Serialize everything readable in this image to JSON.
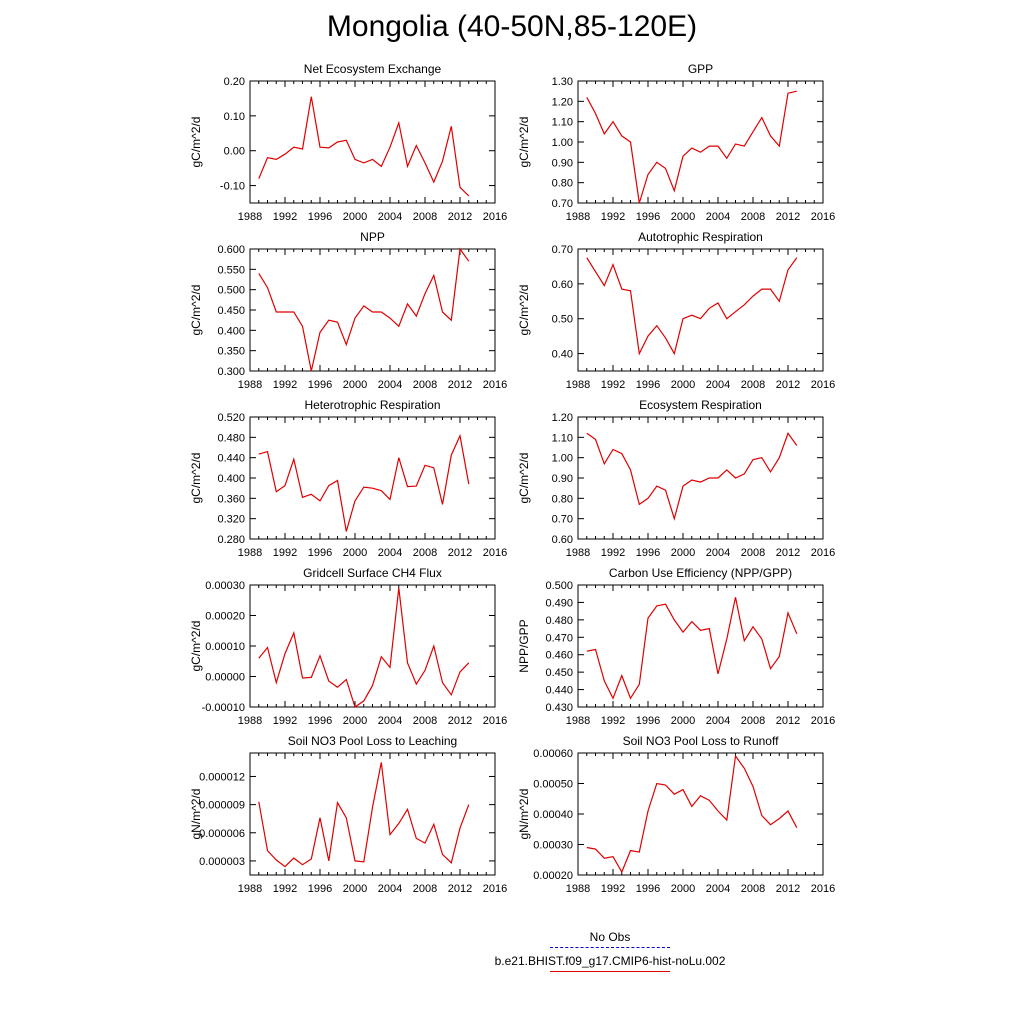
{
  "title": "Mongolia (40-50N,85-120E)",
  "legend": [
    {
      "label": "No Obs",
      "style": "dashed",
      "color": "#0000cc"
    },
    {
      "label": "b.e21.BHIST.f09_g17.CMIP6-hist-noLu.002",
      "style": "solid",
      "color": "#e00000"
    }
  ],
  "chart_data": [
    {
      "type": "line",
      "title": "Net Ecosystem Exchange",
      "ylabel": "gC/m^2/d",
      "xlabel": "",
      "xlim": [
        1988,
        2016
      ],
      "ylim": [
        -0.15,
        0.2
      ],
      "xticks": [
        "1988",
        "1992",
        "1996",
        "2000",
        "2004",
        "2008",
        "2012",
        "2016"
      ],
      "yticks": [
        "-0.10",
        "0.00",
        "0.10",
        "0.20"
      ],
      "series": [
        {
          "color": "#e00000",
          "x": [
            1989,
            1990,
            1991,
            1992,
            1993,
            1994,
            1995,
            1996,
            1997,
            1998,
            1999,
            2000,
            2001,
            2002,
            2003,
            2004,
            2005,
            2006,
            2007,
            2008,
            2009,
            2010,
            2011,
            2012,
            2013
          ],
          "values": [
            -0.08,
            -0.02,
            -0.025,
            -0.01,
            0.01,
            0.005,
            0.155,
            0.01,
            0.008,
            0.025,
            0.03,
            -0.025,
            -0.035,
            -0.025,
            -0.045,
            0.01,
            0.08,
            -0.045,
            0.015,
            -0.035,
            -0.09,
            -0.03,
            0.07,
            -0.105,
            -0.13
          ]
        }
      ]
    },
    {
      "type": "line",
      "title": "GPP",
      "ylabel": "gC/m^2/d",
      "xlabel": "",
      "xlim": [
        1988,
        2016
      ],
      "ylim": [
        0.7,
        1.3
      ],
      "xticks": [
        "1988",
        "1992",
        "1996",
        "2000",
        "2004",
        "2008",
        "2012",
        "2016"
      ],
      "yticks": [
        "0.70",
        "0.80",
        "0.90",
        "1.00",
        "1.10",
        "1.20",
        "1.30"
      ],
      "series": [
        {
          "color": "#e00000",
          "x": [
            1989,
            1990,
            1991,
            1992,
            1993,
            1994,
            1995,
            1996,
            1997,
            1998,
            1999,
            2000,
            2001,
            2002,
            2003,
            2004,
            2005,
            2006,
            2007,
            2008,
            2009,
            2010,
            2011,
            2012,
            2013
          ],
          "values": [
            1.22,
            1.14,
            1.04,
            1.1,
            1.03,
            1.0,
            0.7,
            0.84,
            0.9,
            0.87,
            0.76,
            0.93,
            0.97,
            0.95,
            0.98,
            0.98,
            0.92,
            0.99,
            0.98,
            1.05,
            1.12,
            1.03,
            0.98,
            1.24,
            1.25
          ]
        }
      ]
    },
    {
      "type": "line",
      "title": "NPP",
      "ylabel": "gC/m^2/d",
      "xlabel": "",
      "xlim": [
        1988,
        2016
      ],
      "ylim": [
        0.3,
        0.6
      ],
      "xticks": [
        "1988",
        "1992",
        "1996",
        "2000",
        "2004",
        "2008",
        "2012",
        "2016"
      ],
      "yticks": [
        "0.300",
        "0.350",
        "0.400",
        "0.450",
        "0.500",
        "0.550",
        "0.600"
      ],
      "series": [
        {
          "color": "#e00000",
          "x": [
            1989,
            1990,
            1991,
            1992,
            1993,
            1994,
            1995,
            1996,
            1997,
            1998,
            1999,
            2000,
            2001,
            2002,
            2003,
            2004,
            2005,
            2006,
            2007,
            2008,
            2009,
            2010,
            2011,
            2012,
            2013
          ],
          "values": [
            0.54,
            0.505,
            0.445,
            0.445,
            0.445,
            0.41,
            0.3,
            0.395,
            0.425,
            0.42,
            0.365,
            0.43,
            0.46,
            0.445,
            0.445,
            0.43,
            0.41,
            0.465,
            0.435,
            0.49,
            0.535,
            0.445,
            0.425,
            0.6,
            0.57
          ]
        }
      ]
    },
    {
      "type": "line",
      "title": "Autotrophic Respiration",
      "ylabel": "gC/m^2/d",
      "xlabel": "",
      "xlim": [
        1988,
        2016
      ],
      "ylim": [
        0.35,
        0.7
      ],
      "xticks": [
        "1988",
        "1992",
        "1996",
        "2000",
        "2004",
        "2008",
        "2012",
        "2016"
      ],
      "yticks": [
        "0.40",
        "0.50",
        "0.60",
        "0.70"
      ],
      "series": [
        {
          "color": "#e00000",
          "x": [
            1989,
            1990,
            1991,
            1992,
            1993,
            1994,
            1995,
            1996,
            1997,
            1998,
            1999,
            2000,
            2001,
            2002,
            2003,
            2004,
            2005,
            2006,
            2007,
            2008,
            2009,
            2010,
            2011,
            2012,
            2013
          ],
          "values": [
            0.675,
            0.635,
            0.595,
            0.655,
            0.585,
            0.58,
            0.4,
            0.45,
            0.48,
            0.445,
            0.4,
            0.5,
            0.51,
            0.5,
            0.53,
            0.545,
            0.5,
            0.52,
            0.54,
            0.565,
            0.585,
            0.585,
            0.55,
            0.64,
            0.675
          ]
        }
      ]
    },
    {
      "type": "line",
      "title": "Heterotrophic Respiration",
      "ylabel": "gC/m^2/d",
      "xlabel": "",
      "xlim": [
        1988,
        2016
      ],
      "ylim": [
        0.28,
        0.52
      ],
      "xticks": [
        "1988",
        "1992",
        "1996",
        "2000",
        "2004",
        "2008",
        "2012",
        "2016"
      ],
      "yticks": [
        "0.280",
        "0.320",
        "0.360",
        "0.400",
        "0.440",
        "0.480",
        "0.520"
      ],
      "series": [
        {
          "color": "#e00000",
          "x": [
            1989,
            1990,
            1991,
            1992,
            1993,
            1994,
            1995,
            1996,
            1997,
            1998,
            1999,
            2000,
            2001,
            2002,
            2003,
            2004,
            2005,
            2006,
            2007,
            2008,
            2009,
            2010,
            2011,
            2012,
            2013
          ],
          "values": [
            0.447,
            0.452,
            0.373,
            0.385,
            0.437,
            0.362,
            0.368,
            0.355,
            0.385,
            0.395,
            0.295,
            0.355,
            0.382,
            0.38,
            0.375,
            0.358,
            0.44,
            0.383,
            0.384,
            0.425,
            0.42,
            0.348,
            0.445,
            0.483,
            0.388
          ]
        }
      ]
    },
    {
      "type": "line",
      "title": "Ecosystem Respiration",
      "ylabel": "gC/m^2/d",
      "xlabel": "",
      "xlim": [
        1988,
        2016
      ],
      "ylim": [
        0.6,
        1.2
      ],
      "xticks": [
        "1988",
        "1992",
        "1996",
        "2000",
        "2004",
        "2008",
        "2012",
        "2016"
      ],
      "yticks": [
        "0.60",
        "0.70",
        "0.80",
        "0.90",
        "1.00",
        "1.10",
        "1.20"
      ],
      "series": [
        {
          "color": "#e00000",
          "x": [
            1989,
            1990,
            1991,
            1992,
            1993,
            1994,
            1995,
            1996,
            1997,
            1998,
            1999,
            2000,
            2001,
            2002,
            2003,
            2004,
            2005,
            2006,
            2007,
            2008,
            2009,
            2010,
            2011,
            2012,
            2013
          ],
          "values": [
            1.12,
            1.09,
            0.97,
            1.04,
            1.02,
            0.94,
            0.77,
            0.8,
            0.86,
            0.84,
            0.7,
            0.86,
            0.89,
            0.88,
            0.9,
            0.9,
            0.94,
            0.9,
            0.92,
            0.99,
            1.0,
            0.93,
            1.0,
            1.12,
            1.06
          ]
        }
      ]
    },
    {
      "type": "line",
      "title": "Gridcell Surface CH4 Flux",
      "ylabel": "gC/m^2/d",
      "xlabel": "",
      "xlim": [
        1988,
        2016
      ],
      "ylim": [
        -0.0001,
        0.0003
      ],
      "xticks": [
        "1988",
        "1992",
        "1996",
        "2000",
        "2004",
        "2008",
        "2012",
        "2016"
      ],
      "yticks": [
        "-0.00010",
        "0.00000",
        "0.00010",
        "0.00020",
        "0.00030"
      ],
      "series": [
        {
          "color": "#e00000",
          "x": [
            1989,
            1990,
            1991,
            1992,
            1993,
            1994,
            1995,
            1996,
            1997,
            1998,
            1999,
            2000,
            2001,
            2002,
            2003,
            2004,
            2005,
            2006,
            2007,
            2008,
            2009,
            2010,
            2011,
            2012,
            2013
          ],
          "values": [
            6e-05,
            9.5e-05,
            -2e-05,
            7.5e-05,
            0.000143,
            -5e-06,
            -3e-06,
            6.8e-05,
            -1.5e-05,
            -3.5e-05,
            -1e-05,
            -0.0001,
            -8e-05,
            -3e-05,
            6.5e-05,
            3e-05,
            0.00029,
            4.5e-05,
            -2.5e-05,
            2e-05,
            0.0001,
            -2e-05,
            -6e-05,
            1.5e-05,
            4.5e-05
          ]
        }
      ]
    },
    {
      "type": "line",
      "title": "Carbon Use Efficiency (NPP/GPP)",
      "ylabel": "NPP/GPP",
      "xlabel": "",
      "xlim": [
        1988,
        2016
      ],
      "ylim": [
        0.43,
        0.5
      ],
      "xticks": [
        "1988",
        "1992",
        "1996",
        "2000",
        "2004",
        "2008",
        "2012",
        "2016"
      ],
      "yticks": [
        "0.430",
        "0.440",
        "0.450",
        "0.460",
        "0.470",
        "0.480",
        "0.490",
        "0.500"
      ],
      "series": [
        {
          "color": "#e00000",
          "x": [
            1989,
            1990,
            1991,
            1992,
            1993,
            1994,
            1995,
            1996,
            1997,
            1998,
            1999,
            2000,
            2001,
            2002,
            2003,
            2004,
            2005,
            2006,
            2007,
            2008,
            2009,
            2010,
            2011,
            2012,
            2013
          ],
          "values": [
            0.462,
            0.463,
            0.445,
            0.435,
            0.448,
            0.435,
            0.443,
            0.481,
            0.488,
            0.489,
            0.48,
            0.473,
            0.479,
            0.474,
            0.475,
            0.449,
            0.469,
            0.493,
            0.468,
            0.476,
            0.469,
            0.452,
            0.459,
            0.484,
            0.472
          ]
        }
      ]
    },
    {
      "type": "line",
      "title": "Soil NO3 Pool Loss to Leaching",
      "ylabel": "gN/m^2/d",
      "xlabel": "",
      "xlim": [
        1988,
        2016
      ],
      "ylim": [
        1.5e-06,
        1.45e-05
      ],
      "xticks": [
        "1988",
        "1992",
        "1996",
        "2000",
        "2004",
        "2008",
        "2012",
        "2016"
      ],
      "yticks": [
        "0.000003",
        "0.000006",
        "0.000009",
        "0.000012"
      ],
      "series": [
        {
          "color": "#e00000",
          "x": [
            1989,
            1990,
            1991,
            1992,
            1993,
            1994,
            1995,
            1996,
            1997,
            1998,
            1999,
            2000,
            2001,
            2002,
            2003,
            2004,
            2005,
            2006,
            2007,
            2008,
            2009,
            2010,
            2011,
            2012,
            2013
          ],
          "values": [
            9.3e-06,
            4.1e-06,
            3.1e-06,
            2.4e-06,
            3.3e-06,
            2.6e-06,
            3.2e-06,
            7.6e-06,
            3e-06,
            9.2e-06,
            7.6e-06,
            3e-06,
            2.9e-06,
            8.7e-06,
            1.35e-05,
            5.8e-06,
            7e-06,
            8.5e-06,
            5.4e-06,
            4.9e-06,
            6.9e-06,
            3.7e-06,
            2.8e-06,
            6.5e-06,
            9e-06
          ]
        }
      ]
    },
    {
      "type": "line",
      "title": "Soil NO3 Pool Loss to Runoff",
      "ylabel": "gN/m^2/d",
      "xlabel": "",
      "xlim": [
        1988,
        2016
      ],
      "ylim": [
        0.0002,
        0.0006
      ],
      "xticks": [
        "1988",
        "1992",
        "1996",
        "2000",
        "2004",
        "2008",
        "2012",
        "2016"
      ],
      "yticks": [
        "0.00020",
        "0.00030",
        "0.00040",
        "0.00050",
        "0.00060"
      ],
      "series": [
        {
          "color": "#e00000",
          "x": [
            1989,
            1990,
            1991,
            1992,
            1993,
            1994,
            1995,
            1996,
            1997,
            1998,
            1999,
            2000,
            2001,
            2002,
            2003,
            2004,
            2005,
            2006,
            2007,
            2008,
            2009,
            2010,
            2011,
            2012,
            2013
          ],
          "values": [
            0.00029,
            0.000285,
            0.000255,
            0.00026,
            0.00021,
            0.00028,
            0.000275,
            0.00041,
            0.0005,
            0.000495,
            0.000465,
            0.00048,
            0.000425,
            0.00046,
            0.000445,
            0.00041,
            0.00038,
            0.00059,
            0.00055,
            0.00049,
            0.000395,
            0.000365,
            0.000385,
            0.00041,
            0.000355
          ]
        }
      ]
    }
  ]
}
